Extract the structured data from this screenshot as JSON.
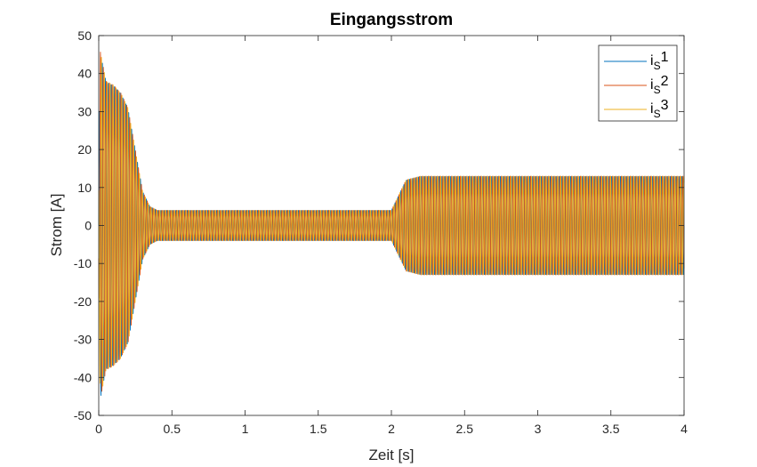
{
  "chart_data": {
    "type": "line",
    "title": "Eingangsstrom",
    "xlabel": "Zeit [s]",
    "ylabel": "Strom [A]",
    "xlim": [
      0,
      4
    ],
    "ylim": [
      -50,
      50
    ],
    "xticks": [
      0,
      0.5,
      1,
      1.5,
      2,
      2.5,
      3,
      3.5,
      4
    ],
    "xtick_labels": [
      "0",
      "0.5",
      "1",
      "1.5",
      "2",
      "2.5",
      "3",
      "3.5",
      "4"
    ],
    "yticks": [
      -50,
      -40,
      -30,
      -20,
      -10,
      0,
      10,
      20,
      30,
      40,
      50
    ],
    "ytick_labels": [
      "-50",
      "-40",
      "-30",
      "-20",
      "-10",
      "0",
      "10",
      "20",
      "30",
      "40",
      "50"
    ],
    "grid": true,
    "legend_position": "top-right",
    "frequency_hz": 50,
    "envelope": {
      "t": [
        0,
        0.01,
        0.05,
        0.1,
        0.15,
        0.2,
        0.25,
        0.3,
        0.35,
        0.4,
        0.5,
        1.0,
        1.5,
        2.0,
        2.05,
        2.1,
        2.2,
        2.5,
        3.0,
        3.5,
        4.0
      ],
      "amplitude": [
        10,
        46,
        38,
        37,
        35,
        31,
        20,
        9,
        5,
        4,
        4,
        4,
        4,
        4,
        8,
        12,
        13,
        13,
        13,
        13,
        13
      ]
    },
    "series": [
      {
        "name_base": "i",
        "name_sub": "S",
        "name_sup": "1",
        "color": "#0072BD",
        "phase_deg": 0
      },
      {
        "name_base": "i",
        "name_sub": "S",
        "name_sup": "2",
        "color": "#D95319",
        "phase_deg": -120
      },
      {
        "name_base": "i",
        "name_sub": "S",
        "name_sup": "3",
        "color": "#EDB120",
        "phase_deg": 120
      }
    ]
  }
}
